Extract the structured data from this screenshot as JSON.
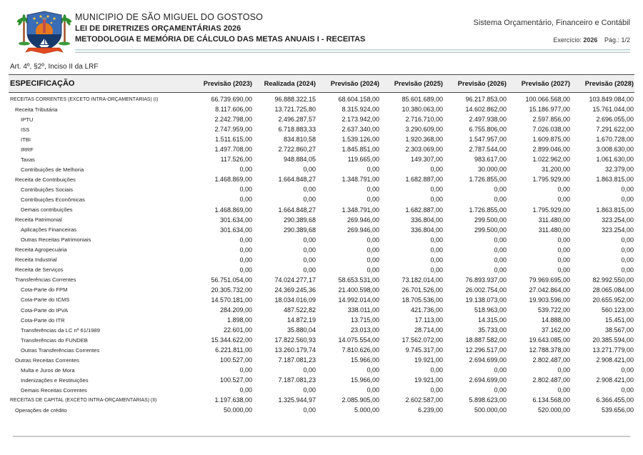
{
  "header": {
    "municipality": "MUNICIPIO DE SÃO MIGUEL DO GOSTOSO",
    "law_title": "LEI DE DIRETRIZES ORÇAMENTÁRIAS 2026",
    "report_title": "METODOLOGIA E MEMÓRIA DE CÁLCULO DAS METAS ANUAIS I - RECEITAS",
    "system_name": "Sistema Orçamentário, Financeiro e Contábil",
    "exercise_label": "Exercício:",
    "exercise_value": "2026",
    "page_label": "Pág.:",
    "page_value": "1/2",
    "logo_icon": "municipal-coat-of-arms"
  },
  "article_reference": "Art. 4º, §2º, Inciso II da LRF",
  "table": {
    "columns": [
      "ESPECIFICAÇÃO",
      "Previsão (2023)",
      "Realizada (2024)",
      "Previsão (2024)",
      "Previsão (2025)",
      "Previsão (2026)",
      "Previsão (2027)",
      "Previsão (2028)"
    ],
    "rows": [
      {
        "label": "RECEITAS CORRENTES (EXCETO INTRA-ORÇAMENTÁRIAS) (I)",
        "level": 0,
        "values": [
          "66.739.690,00",
          "96.888.322,15",
          "68.604.158,00",
          "85.601.689,00",
          "96.217.853,00",
          "100.066.568,00",
          "103.849.084,00"
        ]
      },
      {
        "label": "Receita Tributária",
        "level": 1,
        "values": [
          "8.117.606,00",
          "13.721.725,80",
          "8.315.924,00",
          "10.380.063,00",
          "14.602.862,00",
          "15.186.977,00",
          "15.761.044,00"
        ]
      },
      {
        "label": "IPTU",
        "level": 2,
        "values": [
          "2.242.798,00",
          "2.496.287,57",
          "2.173.942,00",
          "2.716.710,00",
          "2.497.938,00",
          "2.597.856,00",
          "2.696.055,00"
        ]
      },
      {
        "label": "ISS",
        "level": 2,
        "values": [
          "2.747.959,00",
          "6.718.883,33",
          "2.637.340,00",
          "3.290.609,00",
          "6.755.806,00",
          "7.026.038,00",
          "7.291.622,00"
        ]
      },
      {
        "label": "ITBI",
        "level": 2,
        "values": [
          "1.511.615,00",
          "834.810,58",
          "1.539.126,00",
          "1.920.368,00",
          "1.547.957,00",
          "1.609.875,00",
          "1.670.728,00"
        ]
      },
      {
        "label": "IRRF",
        "level": 2,
        "values": [
          "1.497.708,00",
          "2.722.860,27",
          "1.845.851,00",
          "2.303.069,00",
          "2.787.544,00",
          "2.899.046,00",
          "3.008.630,00"
        ]
      },
      {
        "label": "Taxas",
        "level": 2,
        "values": [
          "117.526,00",
          "948.884,05",
          "119.665,00",
          "149.307,00",
          "983.617,00",
          "1.022.962,00",
          "1.061.630,00"
        ]
      },
      {
        "label": "Contribuições de Melhoria",
        "level": 2,
        "values": [
          "0,00",
          "0,00",
          "0,00",
          "0,00",
          "30.000,00",
          "31.200,00",
          "32.379,00"
        ]
      },
      {
        "label": "Receita de Contribuições",
        "level": 1,
        "values": [
          "1.468.869,00",
          "1.664.848,27",
          "1.348.791,00",
          "1.682.887,00",
          "1.726.855,00",
          "1.795.929,00",
          "1.863.815,00"
        ]
      },
      {
        "label": "Contribuições Sociais",
        "level": 2,
        "values": [
          "0,00",
          "0,00",
          "0,00",
          "0,00",
          "0,00",
          "0,00",
          "0,00"
        ]
      },
      {
        "label": "Contribuições Econômicas",
        "level": 2,
        "values": [
          "0,00",
          "0,00",
          "0,00",
          "0,00",
          "0,00",
          "0,00",
          "0,00"
        ]
      },
      {
        "label": "Demais contribuições",
        "level": 2,
        "values": [
          "1.468.869,00",
          "1.664.848,27",
          "1.348.791,00",
          "1.682.887,00",
          "1.726.855,00",
          "1.795.929,00",
          "1.863.815,00"
        ]
      },
      {
        "label": "Receita Patrimonial",
        "level": 1,
        "values": [
          "301.634,00",
          "290.389,68",
          "269.946,00",
          "336.804,00",
          "299.500,00",
          "311.480,00",
          "323.254,00"
        ]
      },
      {
        "label": "Aplicações Financeiras",
        "level": 2,
        "values": [
          "301.634,00",
          "290.389,68",
          "269.946,00",
          "336.804,00",
          "299.500,00",
          "311.480,00",
          "323.254,00"
        ]
      },
      {
        "label": "Outras Receitas Patrimoniais",
        "level": 2,
        "values": [
          "0,00",
          "0,00",
          "0,00",
          "0,00",
          "0,00",
          "0,00",
          "0,00"
        ]
      },
      {
        "label": "Receita Agropecuária",
        "level": 1,
        "values": [
          "0,00",
          "0,00",
          "0,00",
          "0,00",
          "0,00",
          "0,00",
          "0,00"
        ]
      },
      {
        "label": "Receita Industrial",
        "level": 1,
        "values": [
          "0,00",
          "0,00",
          "0,00",
          "0,00",
          "0,00",
          "0,00",
          "0,00"
        ]
      },
      {
        "label": "Receita de Serviços",
        "level": 1,
        "values": [
          "0,00",
          "0,00",
          "0,00",
          "0,00",
          "0,00",
          "0,00",
          "0,00"
        ]
      },
      {
        "label": "Transferências Correntes",
        "level": 1,
        "values": [
          "56.751.054,00",
          "74.024.277,17",
          "58.653.531,00",
          "73.182.014,00",
          "76.893.937,00",
          "79.969.695,00",
          "82.992.550,00"
        ]
      },
      {
        "label": "Cota-Parte do FPM",
        "level": 2,
        "values": [
          "20.305.732,00",
          "24.369.245,36",
          "21.400.598,00",
          "26.701.526,00",
          "26.002.754,00",
          "27.042.864,00",
          "28.065.084,00"
        ]
      },
      {
        "label": "Cota-Parte do ICMS",
        "level": 2,
        "values": [
          "14.570.181,00",
          "18.034.016,09",
          "14.992.014,00",
          "18.705.536,00",
          "19.138.073,00",
          "19.903.596,00",
          "20.655.952,00"
        ]
      },
      {
        "label": "Cota-Parte do IPVA",
        "level": 2,
        "values": [
          "284.209,00",
          "487.522,82",
          "338.011,00",
          "421.736,00",
          "518.963,00",
          "539.722,00",
          "560.123,00"
        ]
      },
      {
        "label": "Cota-Parte do ITR",
        "level": 2,
        "values": [
          "1.898,00",
          "14.872,19",
          "13.715,00",
          "17.113,00",
          "14.315,00",
          "14.888,00",
          "15.451,00"
        ]
      },
      {
        "label": "Transferências da LC nº 61/1989",
        "level": 2,
        "values": [
          "22.601,00",
          "35.880,04",
          "23.013,00",
          "28.714,00",
          "35.733,00",
          "37.162,00",
          "38.567,00"
        ]
      },
      {
        "label": "Transferências do FUNDEB",
        "level": 2,
        "values": [
          "15.344.622,00",
          "17.822.560,93",
          "14.075.554,00",
          "17.562.072,00",
          "18.887.582,00",
          "19.643.085,00",
          "20.385.594,00"
        ]
      },
      {
        "label": "Outras Transferências Correntes",
        "level": 2,
        "values": [
          "6.221.811,00",
          "13.260.179,74",
          "7.810.626,00",
          "9.745.317,00",
          "12.296.517,00",
          "12.788.378,00",
          "13.271.779,00"
        ]
      },
      {
        "label": "Outras Receitas Correntes",
        "level": 1,
        "values": [
          "100.527,00",
          "7.187.081,23",
          "15.966,00",
          "19.921,00",
          "2.694.699,00",
          "2.802.487,00",
          "2.908.421,00"
        ]
      },
      {
        "label": "Multa e Juros de Mora",
        "level": 2,
        "values": [
          "0,00",
          "0,00",
          "0,00",
          "0,00",
          "0,00",
          "0,00",
          "0,00"
        ]
      },
      {
        "label": "Indenizações e Restituições",
        "level": 2,
        "values": [
          "100.527,00",
          "7.187.081,23",
          "15.966,00",
          "19.921,00",
          "2.694.699,00",
          "2.802.487,00",
          "2.908.421,00"
        ]
      },
      {
        "label": "Demais Receitas Correntes",
        "level": 2,
        "values": [
          "0,00",
          "0,00",
          "0,00",
          "0,00",
          "0,00",
          "0,00",
          "0,00"
        ]
      },
      {
        "label": "RECEITAS DE CAPITAL (EXCETO INTRA-ORÇAMENTÁRIAS) (II)",
        "level": 0,
        "values": [
          "1.197.638,00",
          "1.325.944,97",
          "2.085.905,00",
          "2.602.587,00",
          "5.898.623,00",
          "6.134.568,00",
          "6.366.455,00"
        ]
      },
      {
        "label": "Operações de crédito",
        "level": 1,
        "values": [
          "50.000,00",
          "0,00",
          "5.000,00",
          "6.239,00",
          "500.000,00",
          "520.000,00",
          "539.656,00"
        ]
      }
    ]
  }
}
